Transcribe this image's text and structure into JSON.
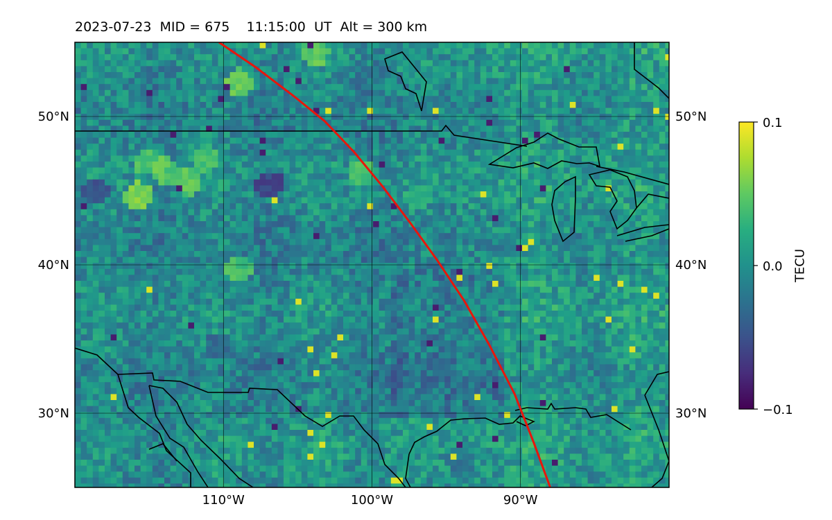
{
  "title": "2023-07-23  MID = 675    11:15:00  UT  Alt = 300 km",
  "map": {
    "lon_range": [
      -120,
      -80
    ],
    "lat_range": [
      25,
      55
    ],
    "grid": true,
    "lat_ticks": [
      {
        "value": 50,
        "label": "50°N"
      },
      {
        "value": 40,
        "label": "40°N"
      },
      {
        "value": 30,
        "label": "30°N"
      }
    ],
    "lon_ticks": [
      {
        "value": -110,
        "label": "110°W"
      },
      {
        "value": -100,
        "label": "100°W"
      },
      {
        "value": -90,
        "label": "90°W"
      }
    ],
    "colormap": "viridis",
    "line_color": "#e8160c",
    "path_track": [
      [
        -110.3,
        55
      ],
      [
        -107.8,
        53.3
      ],
      [
        -105.3,
        51.4
      ],
      [
        -103.2,
        49.7
      ],
      [
        -101.2,
        47.6
      ],
      [
        -99.3,
        45.3
      ],
      [
        -97.4,
        42.8
      ],
      [
        -95.6,
        40.3
      ],
      [
        -93.8,
        37.6
      ],
      [
        -92.1,
        34.6
      ],
      [
        -90.4,
        31.3
      ],
      [
        -89.1,
        28.0
      ],
      [
        -88.0,
        25.0
      ]
    ]
  },
  "colorbar": {
    "label": "TECU",
    "min": -0.1,
    "max": 0.1,
    "ticks": [
      {
        "value": 0.1,
        "label": "0.1"
      },
      {
        "value": 0.0,
        "label": "0.0"
      },
      {
        "value": -0.1,
        "label": "−0.1"
      }
    ]
  }
}
